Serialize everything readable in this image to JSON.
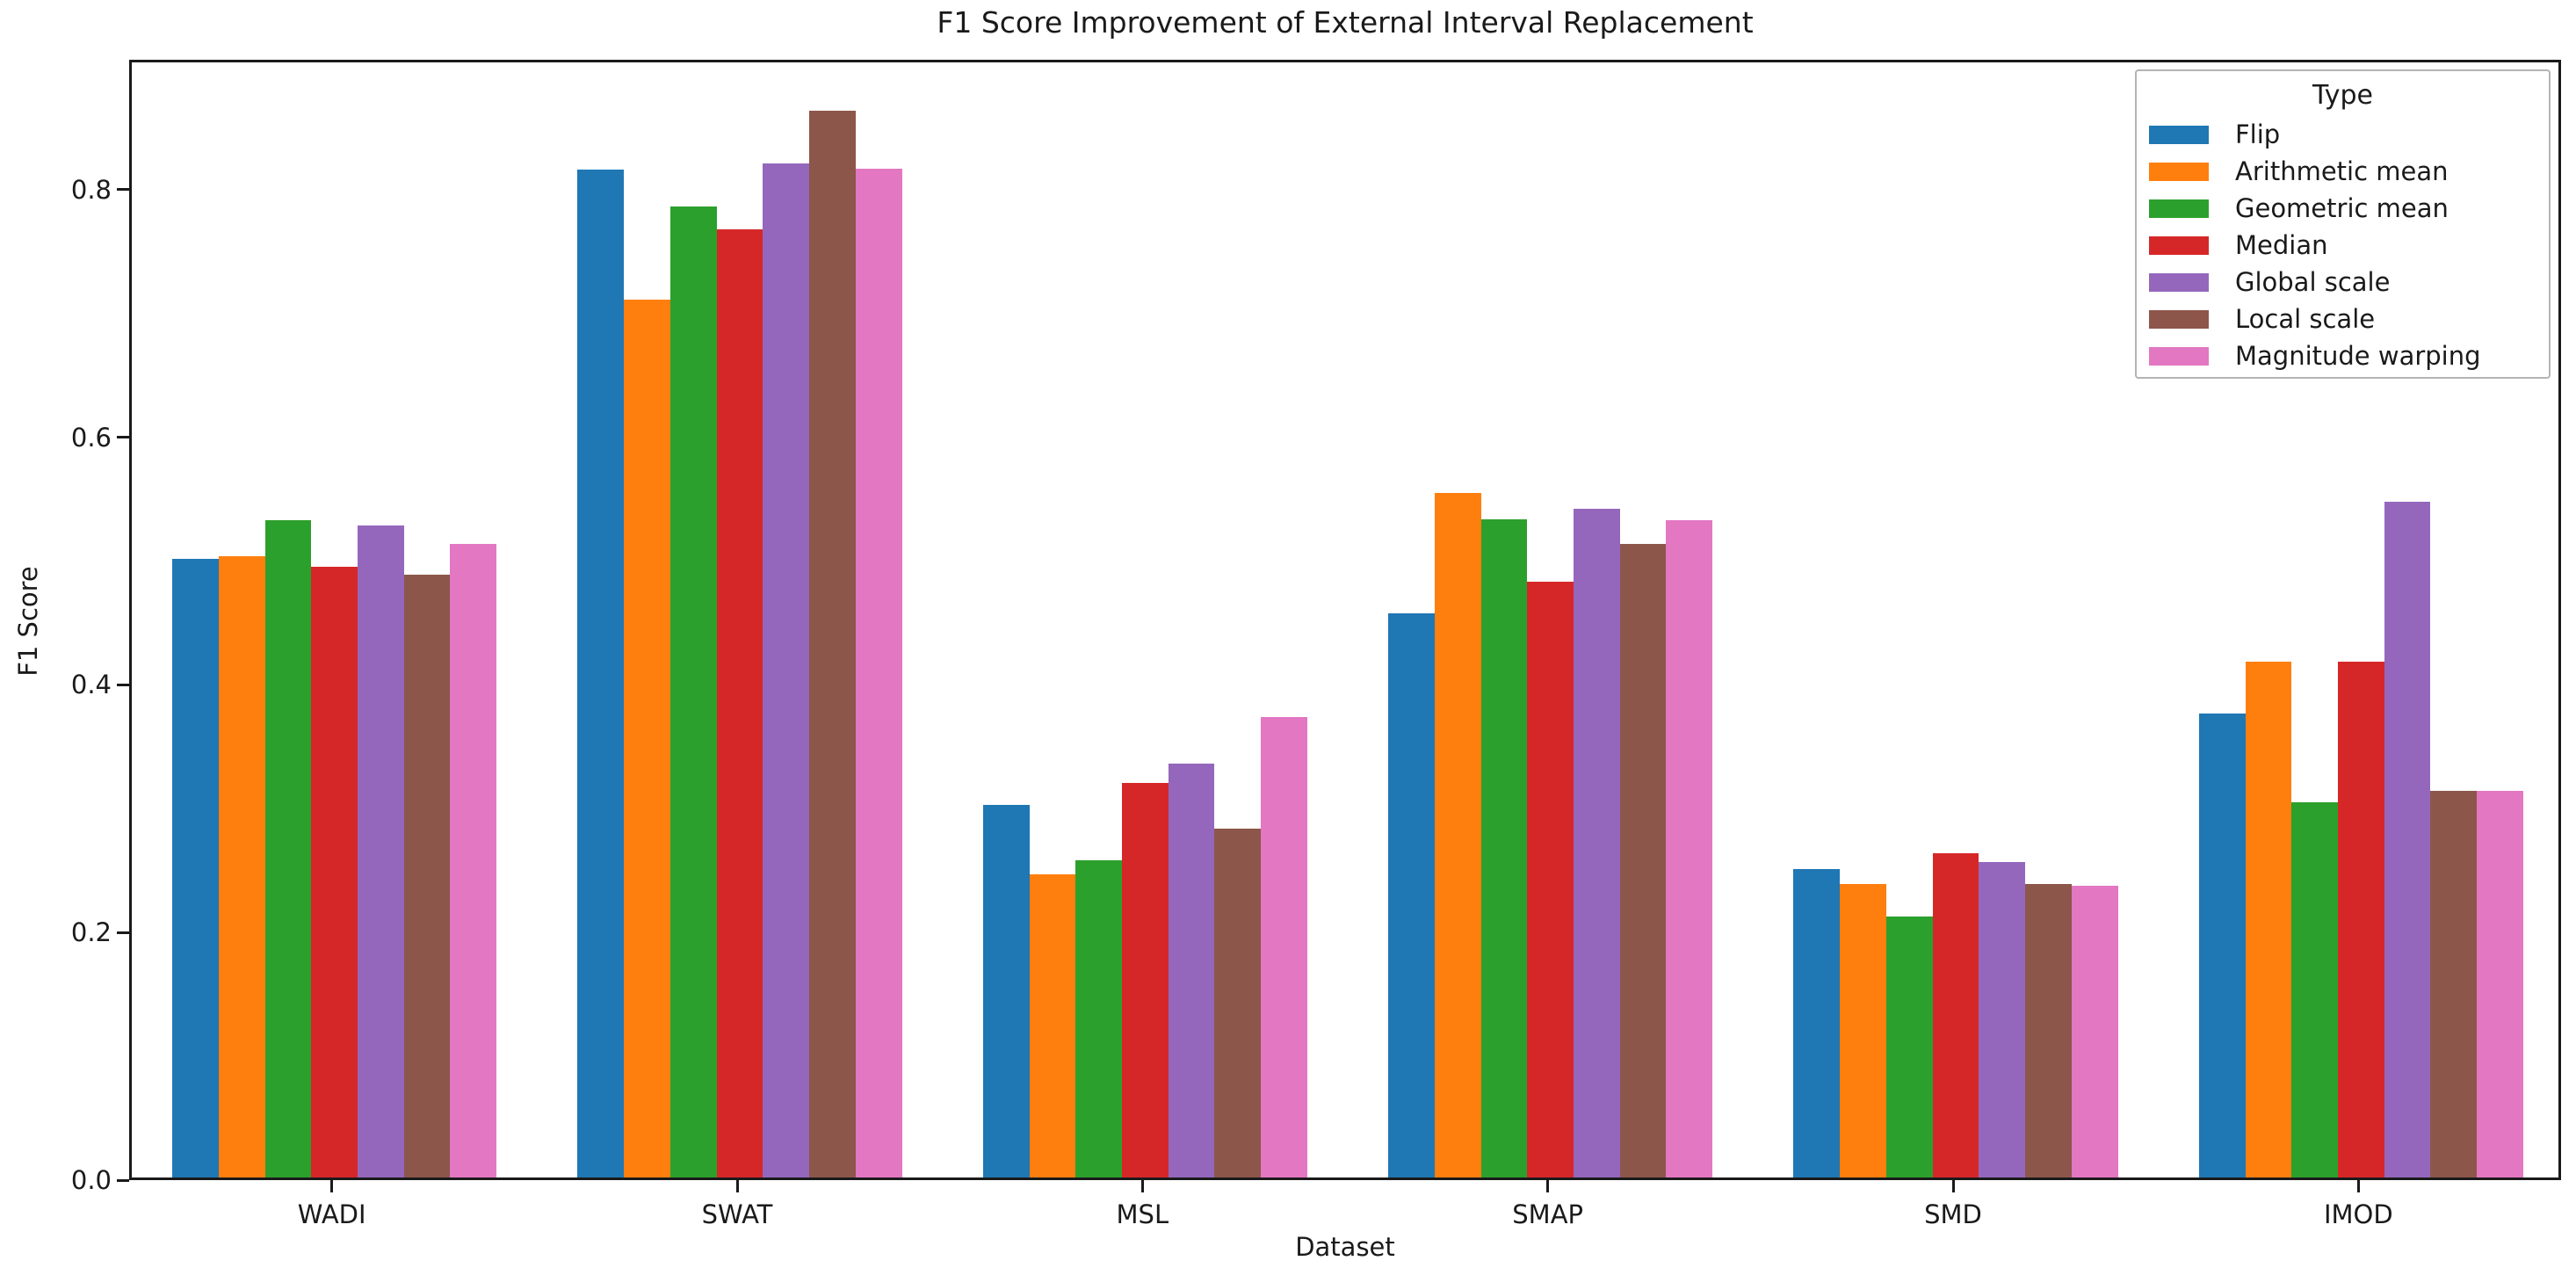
{
  "chart_data": {
    "type": "bar",
    "title": "F1 Score Improvement of External Interval Replacement",
    "xlabel": "Dataset",
    "ylabel": "F1 Score",
    "categories": [
      "WADI",
      "SWAT",
      "MSL",
      "SMAP",
      "SMD",
      "IMOD"
    ],
    "series": [
      {
        "name": "Flip",
        "color": "#1f77b4",
        "values": [
          0.5,
          0.814,
          0.301,
          0.456,
          0.249,
          0.375
        ]
      },
      {
        "name": "Arithmetic mean",
        "color": "#ff7f0e",
        "values": [
          0.502,
          0.709,
          0.245,
          0.553,
          0.237,
          0.417
        ]
      },
      {
        "name": "Geometric mean",
        "color": "#2ca02c",
        "values": [
          0.531,
          0.784,
          0.256,
          0.532,
          0.211,
          0.303
        ]
      },
      {
        "name": "Median",
        "color": "#d62728",
        "values": [
          0.493,
          0.766,
          0.319,
          0.481,
          0.262,
          0.417
        ]
      },
      {
        "name": "Global scale",
        "color": "#9467bd",
        "values": [
          0.527,
          0.819,
          0.334,
          0.54,
          0.255,
          0.546
        ]
      },
      {
        "name": "Local scale",
        "color": "#8c564b",
        "values": [
          0.487,
          0.862,
          0.282,
          0.512,
          0.237,
          0.312
        ]
      },
      {
        "name": "Magnitude warping",
        "color": "#e377c2",
        "values": [
          0.512,
          0.815,
          0.372,
          0.531,
          0.236,
          0.312
        ]
      }
    ],
    "legend": {
      "title": "Type",
      "position": "upper right"
    },
    "ytick_labels": [
      "0.0",
      "0.2",
      "0.4",
      "0.6",
      "0.8"
    ],
    "yticks": [
      0.0,
      0.2,
      0.4,
      0.6,
      0.8
    ],
    "ylim": [
      0,
      0.905
    ],
    "grid": false,
    "axis_color": "#1a1a1a"
  }
}
